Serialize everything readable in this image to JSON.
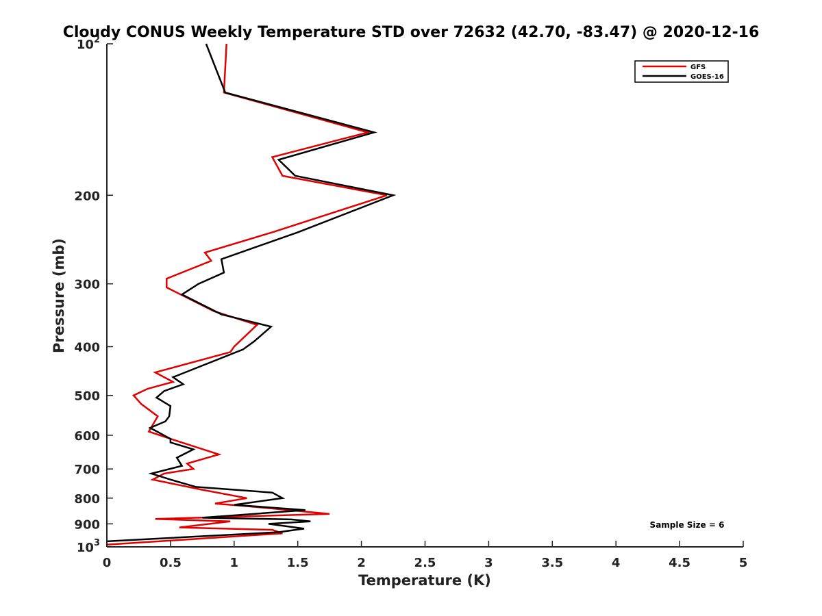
{
  "chart_data": {
    "type": "line",
    "title": "Cloudy CONUS Weekly Temperature STD over 72632 (42.70, -83.47) @ 2020-12-16",
    "xlabel": "Temperature (K)",
    "ylabel": "Pressure (mb)",
    "xlim": [
      0,
      5
    ],
    "ylim": [
      100,
      1000
    ],
    "y_scale": "log",
    "y_reversed": true,
    "x_ticks": [
      0,
      0.5,
      1,
      1.5,
      2,
      2.5,
      3,
      3.5,
      4,
      4.5,
      5
    ],
    "x_tick_labels": [
      "0",
      "0.5",
      "1",
      "1.5",
      "2",
      "2.5",
      "3",
      "3.5",
      "4",
      "4.5",
      "5"
    ],
    "y_ticks": [
      100,
      200,
      300,
      400,
      500,
      600,
      700,
      800,
      900,
      1000
    ],
    "y_tick_labels": [
      {
        "base": "10",
        "exp": "2"
      },
      {
        "base": "200",
        "exp": ""
      },
      {
        "base": "300",
        "exp": ""
      },
      {
        "base": "400",
        "exp": ""
      },
      {
        "base": "500",
        "exp": ""
      },
      {
        "base": "600",
        "exp": ""
      },
      {
        "base": "700",
        "exp": ""
      },
      {
        "base": "800",
        "exp": ""
      },
      {
        "base": "900",
        "exp": ""
      },
      {
        "base": "10",
        "exp": "3"
      }
    ],
    "grid": false,
    "legend_position": "top-right",
    "annotation": "Sample Size = 6",
    "series": [
      {
        "name": "GFS",
        "color": "#e00000",
        "points": [
          [
            0.94,
            100
          ],
          [
            0.92,
            125
          ],
          [
            2.05,
            150
          ],
          [
            1.3,
            168
          ],
          [
            1.38,
            183
          ],
          [
            2.2,
            200
          ],
          [
            1.3,
            237
          ],
          [
            0.77,
            260
          ],
          [
            0.82,
            270
          ],
          [
            0.47,
            293
          ],
          [
            0.47,
            305
          ],
          [
            0.84,
            340
          ],
          [
            1.18,
            362
          ],
          [
            1.0,
            400
          ],
          [
            0.97,
            410
          ],
          [
            0.38,
            450
          ],
          [
            0.52,
            470
          ],
          [
            0.32,
            485
          ],
          [
            0.21,
            500
          ],
          [
            0.27,
            520
          ],
          [
            0.4,
            550
          ],
          [
            0.33,
            590
          ],
          [
            0.52,
            612
          ],
          [
            0.88,
            655
          ],
          [
            0.63,
            683
          ],
          [
            0.68,
            700
          ],
          [
            0.45,
            715
          ],
          [
            0.36,
            735
          ],
          [
            0.75,
            770
          ],
          [
            1.1,
            800
          ],
          [
            0.85,
            820
          ],
          [
            1.1,
            830
          ],
          [
            1.17,
            833
          ],
          [
            1.75,
            860
          ],
          [
            0.38,
            880
          ],
          [
            0.97,
            890
          ],
          [
            0.57,
            915
          ],
          [
            1.3,
            925
          ],
          [
            1.38,
            940
          ],
          [
            0,
            990
          ]
        ]
      },
      {
        "name": "GOES-16",
        "color": "#000000",
        "points": [
          [
            0.78,
            100
          ],
          [
            0.93,
            125
          ],
          [
            2.1,
            150
          ],
          [
            1.35,
            170
          ],
          [
            1.48,
            183
          ],
          [
            2.25,
            200
          ],
          [
            1.5,
            237
          ],
          [
            0.9,
            268
          ],
          [
            0.92,
            285
          ],
          [
            0.72,
            300
          ],
          [
            0.59,
            315
          ],
          [
            0.9,
            345
          ],
          [
            1.29,
            365
          ],
          [
            1.16,
            390
          ],
          [
            1.07,
            405
          ],
          [
            0.52,
            460
          ],
          [
            0.6,
            475
          ],
          [
            0.45,
            490
          ],
          [
            0.39,
            505
          ],
          [
            0.5,
            525
          ],
          [
            0.49,
            550
          ],
          [
            0.46,
            563
          ],
          [
            0.34,
            580
          ],
          [
            0.5,
            610
          ],
          [
            0.5,
            620
          ],
          [
            0.68,
            640
          ],
          [
            0.55,
            665
          ],
          [
            0.59,
            690
          ],
          [
            0.35,
            715
          ],
          [
            0.5,
            735
          ],
          [
            0.7,
            760
          ],
          [
            1.3,
            780
          ],
          [
            1.38,
            800
          ],
          [
            1.0,
            825
          ],
          [
            1.56,
            845
          ],
          [
            0.75,
            875
          ],
          [
            1.45,
            882
          ],
          [
            1.6,
            890
          ],
          [
            1.27,
            900
          ],
          [
            1.55,
            920
          ],
          [
            1.35,
            935
          ],
          [
            0,
            975
          ]
        ]
      }
    ]
  }
}
